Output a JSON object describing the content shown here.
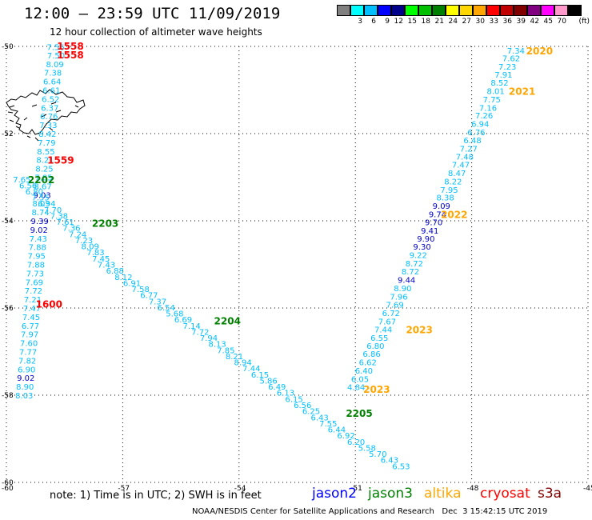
{
  "header": {
    "title": "12:00 — 23:59 UTC 11/09/2019",
    "subtitle": "12 hour collection of altimeter wave heights"
  },
  "legend": {
    "unit": "(ft)",
    "bins": [
      {
        "color": "#808080",
        "label": ""
      },
      {
        "color": "#00ffff",
        "label": "3"
      },
      {
        "color": "#00bfff",
        "label": "6"
      },
      {
        "color": "#0000ff",
        "label": "9"
      },
      {
        "color": "#00008b",
        "label": "12"
      },
      {
        "color": "#00ff00",
        "label": "15"
      },
      {
        "color": "#00c000",
        "label": "18"
      },
      {
        "color": "#008000",
        "label": "21"
      },
      {
        "color": "#ffff00",
        "label": "24"
      },
      {
        "color": "#ffd700",
        "label": "27"
      },
      {
        "color": "#ffa500",
        "label": "30"
      },
      {
        "color": "#ff0000",
        "label": "33"
      },
      {
        "color": "#c00000",
        "label": "36"
      },
      {
        "color": "#800000",
        "label": "39"
      },
      {
        "color": "#800080",
        "label": "42"
      },
      {
        "color": "#ff00ff",
        "label": "45"
      },
      {
        "color": "#ff99cc",
        "label": "70"
      },
      {
        "color": "#000000",
        "label": ""
      }
    ]
  },
  "axes": {
    "lon_min": -60,
    "lon_max": -45,
    "lat_min": -60,
    "lat_max": -50,
    "lon_ticks": [
      {
        "value": -60,
        "label": "-60"
      },
      {
        "value": -57,
        "label": "-57"
      },
      {
        "value": -54,
        "label": "-54"
      },
      {
        "value": -51,
        "label": "-51"
      },
      {
        "value": -48,
        "label": "-48"
      },
      {
        "value": -45,
        "label": "-45"
      }
    ],
    "lat_ticks": [
      {
        "value": -50,
        "label": "-50"
      },
      {
        "value": -52,
        "label": "-52"
      },
      {
        "value": -54,
        "label": "-54"
      },
      {
        "value": -56,
        "label": "-56"
      },
      {
        "value": -58,
        "label": "-58"
      },
      {
        "value": -60,
        "label": "-60"
      }
    ]
  },
  "colors": {
    "grid": "#000000",
    "jason2": "#0000ff",
    "jason3": "#008000",
    "altika": "#ffa500",
    "cryosat": "#ff0000",
    "s3a": "#800000",
    "wave_light": "#00bfff",
    "wave_dark": "#0000c8"
  },
  "tracks": [
    {
      "satellite": "cryosat",
      "color": "#00bfff",
      "waves": [
        {
          "lon": -58.73,
          "lat": -50.01,
          "v": "7.56"
        },
        {
          "lon": -58.72,
          "lat": -50.2,
          "v": "7.50"
        },
        {
          "lon": -58.75,
          "lat": -50.4,
          "v": "8.09"
        },
        {
          "lon": -58.8,
          "lat": -50.6,
          "v": "7.38"
        },
        {
          "lon": -58.82,
          "lat": -50.8,
          "v": "6.64"
        },
        {
          "lon": -58.84,
          "lat": -51.0,
          "v": "6.61"
        },
        {
          "lon": -58.86,
          "lat": -51.2,
          "v": "6.52"
        },
        {
          "lon": -58.88,
          "lat": -51.4,
          "v": "6.37"
        },
        {
          "lon": -58.9,
          "lat": -51.6,
          "v": "6.76"
        },
        {
          "lon": -58.92,
          "lat": -51.8,
          "v": "7.33"
        },
        {
          "lon": -58.94,
          "lat": -52.0,
          "v": "8.42"
        },
        {
          "lon": -58.96,
          "lat": -52.2,
          "v": "7.79"
        },
        {
          "lon": -58.98,
          "lat": -52.4,
          "v": "8.55"
        },
        {
          "lon": -59.0,
          "lat": -52.6,
          "v": "8.21"
        },
        {
          "lon": -59.02,
          "lat": -52.8,
          "v": "8.25"
        },
        {
          "lon": -59.04,
          "lat": -53.0,
          "v": "7.85"
        },
        {
          "lon": -59.06,
          "lat": -53.2,
          "v": "8.67"
        },
        {
          "lon": -59.08,
          "lat": -53.4,
          "v": "9.03",
          "dark": true
        },
        {
          "lon": -59.1,
          "lat": -53.6,
          "v": "8.03"
        },
        {
          "lon": -59.12,
          "lat": -53.8,
          "v": "8.74"
        },
        {
          "lon": -59.14,
          "lat": -54.0,
          "v": "9.39",
          "dark": true
        },
        {
          "lon": -59.16,
          "lat": -54.2,
          "v": "9.02",
          "dark": true
        },
        {
          "lon": -59.18,
          "lat": -54.4,
          "v": "7.43"
        },
        {
          "lon": -59.2,
          "lat": -54.6,
          "v": "7.88"
        },
        {
          "lon": -59.22,
          "lat": -54.8,
          "v": "7.95"
        },
        {
          "lon": -59.24,
          "lat": -55.0,
          "v": "7.88"
        },
        {
          "lon": -59.26,
          "lat": -55.2,
          "v": "7.73"
        },
        {
          "lon": -59.28,
          "lat": -55.4,
          "v": "7.69"
        },
        {
          "lon": -59.3,
          "lat": -55.6,
          "v": "7.72"
        },
        {
          "lon": -59.32,
          "lat": -55.8,
          "v": "7.21"
        },
        {
          "lon": -59.34,
          "lat": -56.0,
          "v": "7.47"
        },
        {
          "lon": -59.36,
          "lat": -56.2,
          "v": "7.45"
        },
        {
          "lon": -59.38,
          "lat": -56.4,
          "v": "6.77"
        },
        {
          "lon": -59.4,
          "lat": -56.6,
          "v": "7.97"
        },
        {
          "lon": -59.42,
          "lat": -56.8,
          "v": "7.60"
        },
        {
          "lon": -59.44,
          "lat": -57.0,
          "v": "7.77"
        },
        {
          "lon": -59.46,
          "lat": -57.2,
          "v": "7.82"
        },
        {
          "lon": -59.48,
          "lat": -57.4,
          "v": "6.90"
        },
        {
          "lon": -59.5,
          "lat": -57.6,
          "v": "9.02",
          "dark": true
        },
        {
          "lon": -59.52,
          "lat": -57.8,
          "v": "8.90"
        },
        {
          "lon": -59.54,
          "lat": -58.0,
          "v": "8.03"
        }
      ],
      "times": [
        {
          "lon": -58.35,
          "lat": -49.98,
          "t": "1558"
        },
        {
          "lon": -58.35,
          "lat": -50.18,
          "t": "1558"
        },
        {
          "lon": -58.6,
          "lat": -52.6,
          "t": "1559"
        },
        {
          "lon": -58.9,
          "lat": -55.9,
          "t": "1600"
        }
      ]
    },
    {
      "satellite": "jason3",
      "color": "#00bfff",
      "waves": [
        {
          "lon": -59.6,
          "lat": -53.05,
          "v": "7.65"
        },
        {
          "lon": -59.44,
          "lat": -53.18,
          "v": "6.56"
        },
        {
          "lon": -59.28,
          "lat": -53.32,
          "v": "6.80"
        },
        {
          "lon": -59.12,
          "lat": -53.46,
          "v": "7.55"
        },
        {
          "lon": -58.96,
          "lat": -53.6,
          "v": "6.94"
        },
        {
          "lon": -58.8,
          "lat": -53.74,
          "v": "7.70"
        },
        {
          "lon": -58.64,
          "lat": -53.88,
          "v": "7.38"
        },
        {
          "lon": -58.48,
          "lat": -54.02,
          "v": "7.61"
        },
        {
          "lon": -58.32,
          "lat": -54.16,
          "v": "7.36"
        },
        {
          "lon": -58.16,
          "lat": -54.3,
          "v": "7.24"
        },
        {
          "lon": -58.0,
          "lat": -54.44,
          "v": "7.23"
        },
        {
          "lon": -57.84,
          "lat": -54.58,
          "v": "8.09"
        },
        {
          "lon": -57.7,
          "lat": -54.72,
          "v": "7.83"
        },
        {
          "lon": -57.56,
          "lat": -54.86,
          "v": "7.45"
        },
        {
          "lon": -57.42,
          "lat": -55.0,
          "v": "7.43"
        },
        {
          "lon": -57.2,
          "lat": -55.14,
          "v": "6.88"
        },
        {
          "lon": -56.98,
          "lat": -55.28,
          "v": "8.12"
        },
        {
          "lon": -56.76,
          "lat": -55.42,
          "v": "6.91"
        },
        {
          "lon": -56.54,
          "lat": -55.56,
          "v": "7.58"
        },
        {
          "lon": -56.32,
          "lat": -55.7,
          "v": "6.77"
        },
        {
          "lon": -56.1,
          "lat": -55.84,
          "v": "7.37"
        },
        {
          "lon": -55.88,
          "lat": -55.98,
          "v": "6.54"
        },
        {
          "lon": -55.66,
          "lat": -56.12,
          "v": "5.68"
        },
        {
          "lon": -55.44,
          "lat": -56.26,
          "v": "6.69"
        },
        {
          "lon": -55.22,
          "lat": -56.4,
          "v": "7.14"
        },
        {
          "lon": -55.0,
          "lat": -56.54,
          "v": "7.72"
        },
        {
          "lon": -54.78,
          "lat": -56.68,
          "v": "7.94"
        },
        {
          "lon": -54.56,
          "lat": -56.82,
          "v": "8.13"
        },
        {
          "lon": -54.34,
          "lat": -56.96,
          "v": "7.85"
        },
        {
          "lon": -54.12,
          "lat": -57.1,
          "v": "8.21"
        },
        {
          "lon": -53.9,
          "lat": -57.24,
          "v": "8.94"
        },
        {
          "lon": -53.68,
          "lat": -57.38,
          "v": "7.44"
        },
        {
          "lon": -53.46,
          "lat": -57.52,
          "v": "6.15"
        },
        {
          "lon": -53.24,
          "lat": -57.66,
          "v": "5.86"
        },
        {
          "lon": -53.02,
          "lat": -57.8,
          "v": "6.49"
        },
        {
          "lon": -52.8,
          "lat": -57.94,
          "v": "6.13"
        },
        {
          "lon": -52.58,
          "lat": -58.08,
          "v": "6.15"
        },
        {
          "lon": -52.36,
          "lat": -58.22,
          "v": "6.56"
        },
        {
          "lon": -52.14,
          "lat": -58.36,
          "v": "6.25"
        },
        {
          "lon": -51.92,
          "lat": -58.5,
          "v": "6.43"
        },
        {
          "lon": -51.7,
          "lat": -58.64,
          "v": "7.55"
        },
        {
          "lon": -51.48,
          "lat": -58.78,
          "v": "6.44"
        },
        {
          "lon": -51.24,
          "lat": -58.92,
          "v": "6.92"
        },
        {
          "lon": -50.98,
          "lat": -59.06,
          "v": "6.20"
        },
        {
          "lon": -50.7,
          "lat": -59.2,
          "v": "5.58"
        },
        {
          "lon": -50.42,
          "lat": -59.34,
          "v": "5.70"
        },
        {
          "lon": -50.12,
          "lat": -59.48,
          "v": "6.43"
        },
        {
          "lon": -49.82,
          "lat": -59.62,
          "v": "6.53"
        }
      ],
      "times": [
        {
          "lon": -59.1,
          "lat": -53.05,
          "t": "2202"
        },
        {
          "lon": -57.45,
          "lat": -54.05,
          "t": "2203"
        },
        {
          "lon": -54.3,
          "lat": -56.28,
          "t": "2204"
        },
        {
          "lon": -50.9,
          "lat": -58.4,
          "t": "2205"
        }
      ]
    },
    {
      "satellite": "altika",
      "color": "#00bfff",
      "waves": [
        {
          "lon": -46.86,
          "lat": -50.09,
          "v": "7.34"
        },
        {
          "lon": -46.98,
          "lat": -50.27,
          "v": "7.62"
        },
        {
          "lon": -47.08,
          "lat": -50.46,
          "v": "7.23"
        },
        {
          "lon": -47.18,
          "lat": -50.64,
          "v": "7.91"
        },
        {
          "lon": -47.28,
          "lat": -50.83,
          "v": "8.52"
        },
        {
          "lon": -47.38,
          "lat": -51.02,
          "v": "8.01"
        },
        {
          "lon": -47.48,
          "lat": -51.21,
          "v": "7.75"
        },
        {
          "lon": -47.58,
          "lat": -51.4,
          "v": "7.16"
        },
        {
          "lon": -47.68,
          "lat": -51.58,
          "v": "7.26"
        },
        {
          "lon": -47.78,
          "lat": -51.77,
          "v": "6.94"
        },
        {
          "lon": -47.88,
          "lat": -51.96,
          "v": "6.76"
        },
        {
          "lon": -47.98,
          "lat": -52.15,
          "v": "6.48"
        },
        {
          "lon": -48.08,
          "lat": -52.34,
          "v": "7.27"
        },
        {
          "lon": -48.18,
          "lat": -52.52,
          "v": "7.48"
        },
        {
          "lon": -48.28,
          "lat": -52.71,
          "v": "7.47"
        },
        {
          "lon": -48.38,
          "lat": -52.9,
          "v": "8.47"
        },
        {
          "lon": -48.48,
          "lat": -53.09,
          "v": "8.22"
        },
        {
          "lon": -48.58,
          "lat": -53.28,
          "v": "7.95"
        },
        {
          "lon": -48.68,
          "lat": -53.46,
          "v": "8.38"
        },
        {
          "lon": -48.78,
          "lat": -53.65,
          "v": "9.09",
          "dark": true
        },
        {
          "lon": -48.88,
          "lat": -53.84,
          "v": "9.74",
          "dark": true
        },
        {
          "lon": -48.98,
          "lat": -54.03,
          "v": "9.70",
          "dark": true
        },
        {
          "lon": -49.08,
          "lat": -54.22,
          "v": "9.41",
          "dark": true
        },
        {
          "lon": -49.18,
          "lat": -54.4,
          "v": "9.90",
          "dark": true
        },
        {
          "lon": -49.28,
          "lat": -54.59,
          "v": "9.30",
          "dark": true
        },
        {
          "lon": -49.38,
          "lat": -54.78,
          "v": "9.22"
        },
        {
          "lon": -49.48,
          "lat": -54.97,
          "v": "8.72"
        },
        {
          "lon": -49.58,
          "lat": -55.16,
          "v": "8.72"
        },
        {
          "lon": -49.68,
          "lat": -55.35,
          "v": "9.44",
          "dark": true
        },
        {
          "lon": -49.78,
          "lat": -55.54,
          "v": "8.90"
        },
        {
          "lon": -49.88,
          "lat": -55.73,
          "v": "7.96"
        },
        {
          "lon": -49.98,
          "lat": -55.92,
          "v": "7.69"
        },
        {
          "lon": -50.08,
          "lat": -56.11,
          "v": "6.72"
        },
        {
          "lon": -50.18,
          "lat": -56.3,
          "v": "7.67"
        },
        {
          "lon": -50.28,
          "lat": -56.49,
          "v": "7.44"
        },
        {
          "lon": -50.38,
          "lat": -56.68,
          "v": "6.55"
        },
        {
          "lon": -50.48,
          "lat": -56.86,
          "v": "6.80"
        },
        {
          "lon": -50.58,
          "lat": -57.05,
          "v": "6.86"
        },
        {
          "lon": -50.68,
          "lat": -57.24,
          "v": "6.62"
        },
        {
          "lon": -50.78,
          "lat": -57.43,
          "v": "6.40"
        },
        {
          "lon": -50.88,
          "lat": -57.62,
          "v": "6.05"
        },
        {
          "lon": -50.98,
          "lat": -57.81,
          "v": "4.84"
        }
      ],
      "times": [
        {
          "lon": -46.25,
          "lat": -50.09,
          "t": "2020"
        },
        {
          "lon": -46.7,
          "lat": -51.02,
          "t": "2021"
        },
        {
          "lon": -48.45,
          "lat": -53.84,
          "t": "2022"
        },
        {
          "lon": -49.35,
          "lat": -56.49,
          "t": "2023"
        },
        {
          "lon": -50.45,
          "lat": -57.85,
          "t": "2023"
        }
      ]
    }
  ],
  "footer": {
    "note": "note:  1) Time is in UTC;  2) SWH is in feet",
    "satellites": [
      {
        "name": "jason2",
        "color": "#0000ff"
      },
      {
        "name": "jason3",
        "color": "#008000"
      },
      {
        "name": "altika",
        "color": "#ffa500"
      },
      {
        "name": "cryosat",
        "color": "#ff0000"
      },
      {
        "name": "s3a",
        "color": "#800000"
      }
    ],
    "credit": "NOAA/NESDIS Center for Satellite Applications and Research   Dec  3 15:42:15 UTC 2019"
  }
}
